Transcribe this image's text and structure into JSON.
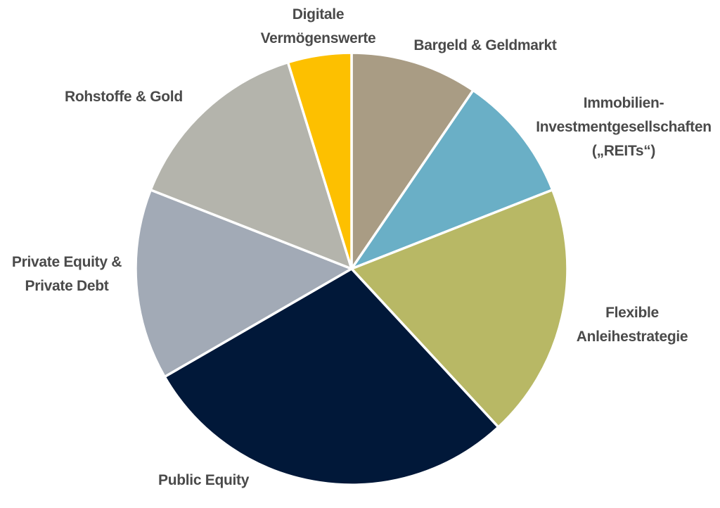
{
  "chart_data": {
    "type": "pie",
    "slices": [
      {
        "label": [
          "Bargeld & Geldmarkt"
        ],
        "value": 10,
        "color": "#a99c84"
      },
      {
        "label": [
          "Immobilien-",
          "Investmentgesellschaften",
          "(„REITs“)"
        ],
        "value": 10,
        "color": "#6aafc6"
      },
      {
        "label": [
          "Flexible",
          "Anleihestrategie"
        ],
        "value": 20,
        "color": "#b8b865"
      },
      {
        "label": [
          "Public Equity"
        ],
        "value": 30,
        "color": "#011839"
      },
      {
        "label": [
          "Private Equity &",
          "Private Debt"
        ],
        "value": 15,
        "color": "#a2aab6"
      },
      {
        "label": [
          "Rohstoffe & Gold"
        ],
        "value": 15,
        "color": "#b4b4ac"
      },
      {
        "label": [
          "Digitale",
          "Vermögenswerte"
        ],
        "value": 5,
        "color": "#fdc000"
      }
    ],
    "start_angle": "12 o'clock",
    "direction": "clockwise"
  }
}
